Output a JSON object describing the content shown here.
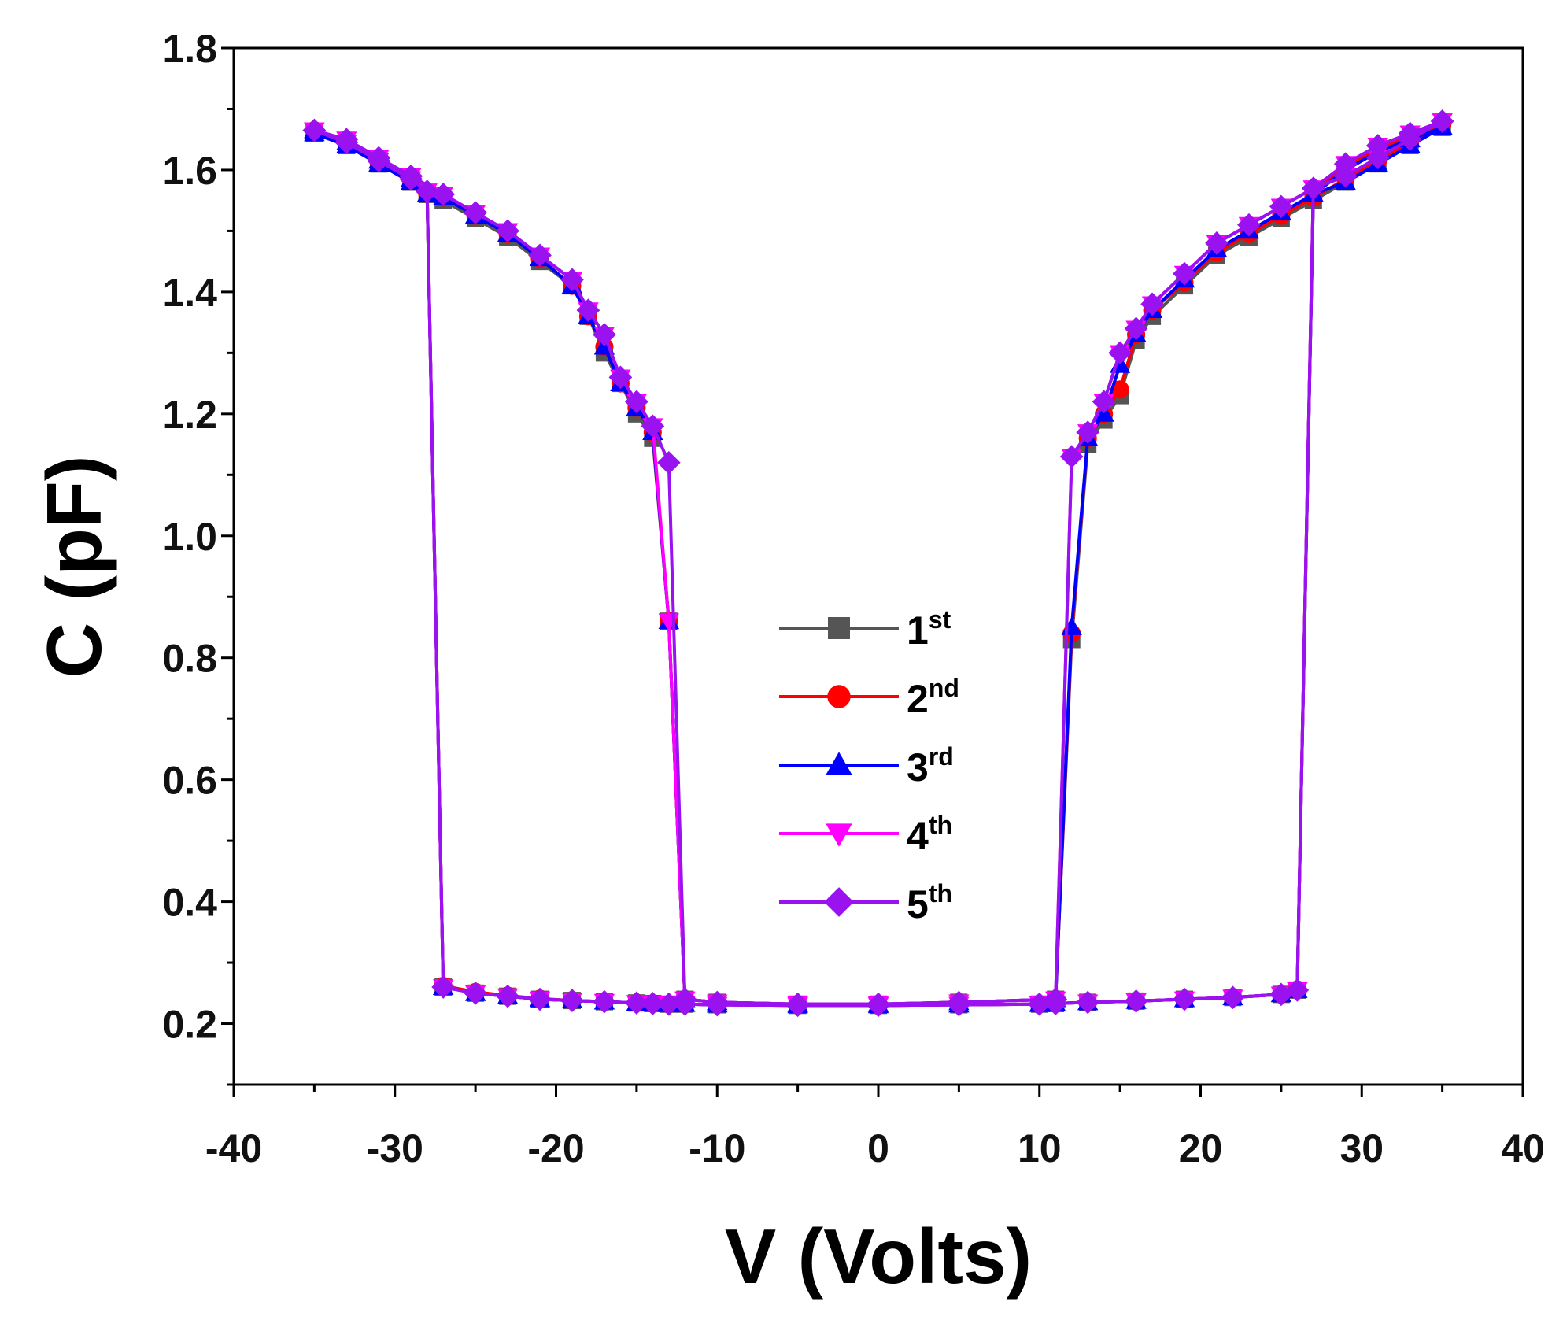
{
  "chart_data": {
    "type": "line",
    "xlabel": "V (Volts)",
    "ylabel": "C (pF)",
    "xlim": [
      -40,
      40
    ],
    "ylim": [
      0.1,
      1.8
    ],
    "xticks": [
      -40,
      -30,
      -20,
      -10,
      0,
      10,
      20,
      30,
      40
    ],
    "yticks": [
      0.2,
      0.4,
      0.6,
      0.8,
      1.0,
      1.2,
      1.4,
      1.6,
      1.8
    ],
    "xtick_labels": [
      "-40",
      "-30",
      "-20",
      "-10",
      "0",
      "10",
      "20",
      "30",
      "40"
    ],
    "ytick_labels": [
      "0.2",
      "0.4",
      "0.6",
      "0.8",
      "1.0",
      "1.2",
      "1.4",
      "1.6",
      "1.8"
    ],
    "legend_position": "center",
    "series": [
      {
        "name": "1st",
        "num": "1",
        "sup": "st",
        "color": "#555555",
        "marker": "square",
        "segments": [
          {
            "x": [
              -35,
              -33,
              -31,
              -29,
              -28,
              -27,
              -25,
              -23,
              -21,
              -19,
              -17,
              -15,
              -14,
              -13,
              -12,
              -10,
              -5,
              0,
              5,
              10,
              11,
              13,
              16,
              19,
              22,
              25,
              26,
              27,
              29,
              31,
              33,
              35
            ],
            "y": [
              1.66,
              1.64,
              1.61,
              1.58,
              1.56,
              0.26,
              0.25,
              0.245,
              0.24,
              0.238,
              0.236,
              0.234,
              0.233,
              0.232,
              0.232,
              0.231,
              0.23,
              0.23,
              0.231,
              0.232,
              0.233,
              0.235,
              0.237,
              0.24,
              0.243,
              0.248,
              0.255,
              1.56,
              1.6,
              1.63,
              1.65,
              1.67
            ]
          },
          {
            "x": [
              35,
              33,
              31,
              29,
              27,
              25,
              23,
              21,
              19,
              17,
              16,
              15,
              14,
              13,
              12,
              11,
              5,
              0,
              -5,
              -10,
              -12,
              -13,
              -14,
              -15,
              -16,
              -17,
              -18,
              -19,
              -21,
              -23,
              -25,
              -27,
              -29,
              -31,
              -33,
              -35
            ],
            "y": [
              1.67,
              1.64,
              1.61,
              1.58,
              1.55,
              1.52,
              1.49,
              1.46,
              1.41,
              1.36,
              1.32,
              1.23,
              1.19,
              1.15,
              0.83,
              0.24,
              0.235,
              0.232,
              0.232,
              0.235,
              0.24,
              0.86,
              1.16,
              1.2,
              1.25,
              1.3,
              1.36,
              1.41,
              1.45,
              1.49,
              1.52,
              1.55,
              1.58,
              1.61,
              1.64,
              1.66
            ]
          }
        ]
      },
      {
        "name": "2nd",
        "num": "2",
        "sup": "nd",
        "color": "#ff0000",
        "marker": "circle",
        "segments": [
          {
            "x": [
              -35,
              -33,
              -31,
              -29,
              -28,
              -27,
              -25,
              -23,
              -21,
              -19,
              -17,
              -15,
              -14,
              -13,
              -12,
              -10,
              -5,
              0,
              5,
              10,
              11,
              13,
              16,
              19,
              22,
              25,
              26,
              27,
              29,
              31,
              33,
              35
            ],
            "y": [
              1.665,
              1.645,
              1.612,
              1.582,
              1.562,
              0.262,
              0.252,
              0.246,
              0.241,
              0.238,
              0.236,
              0.234,
              0.233,
              0.232,
              0.232,
              0.231,
              0.23,
              0.23,
              0.231,
              0.232,
              0.233,
              0.235,
              0.237,
              0.24,
              0.243,
              0.248,
              0.256,
              1.565,
              1.605,
              1.635,
              1.655,
              1.675
            ]
          },
          {
            "x": [
              35,
              33,
              31,
              29,
              27,
              25,
              23,
              21,
              19,
              17,
              16,
              15,
              14,
              13,
              12,
              11,
              5,
              0,
              -5,
              -10,
              -12,
              -13,
              -14,
              -15,
              -16,
              -17,
              -18,
              -19,
              -21,
              -23,
              -25,
              -27,
              -29,
              -31,
              -33,
              -35
            ],
            "y": [
              1.675,
              1.645,
              1.615,
              1.585,
              1.555,
              1.525,
              1.495,
              1.465,
              1.415,
              1.37,
              1.33,
              1.24,
              1.2,
              1.16,
              0.84,
              0.24,
              0.235,
              0.232,
              0.232,
              0.235,
              0.24,
              0.86,
              1.17,
              1.21,
              1.25,
              1.31,
              1.36,
              1.41,
              1.455,
              1.495,
              1.525,
              1.555,
              1.585,
              1.615,
              1.645,
              1.665
            ]
          }
        ]
      },
      {
        "name": "3rd",
        "num": "3",
        "sup": "rd",
        "color": "#0000ff",
        "marker": "triangle-up",
        "segments": [
          {
            "x": [
              -35,
              -33,
              -31,
              -29,
              -28,
              -27,
              -25,
              -23,
              -21,
              -19,
              -17,
              -15,
              -14,
              -13,
              -12,
              -10,
              -5,
              0,
              5,
              10,
              11,
              13,
              16,
              19,
              22,
              25,
              26,
              27,
              29,
              31,
              33,
              35
            ],
            "y": [
              1.66,
              1.64,
              1.61,
              1.58,
              1.56,
              0.26,
              0.25,
              0.245,
              0.24,
              0.238,
              0.236,
              0.234,
              0.233,
              0.232,
              0.232,
              0.231,
              0.23,
              0.23,
              0.231,
              0.232,
              0.233,
              0.235,
              0.237,
              0.24,
              0.243,
              0.248,
              0.255,
              1.56,
              1.6,
              1.63,
              1.65,
              1.67
            ]
          },
          {
            "x": [
              35,
              33,
              31,
              29,
              27,
              25,
              23,
              21,
              19,
              17,
              16,
              15,
              14,
              13,
              12,
              11,
              5,
              0,
              -5,
              -10,
              -12,
              -13,
              -14,
              -15,
              -16,
              -17,
              -18,
              -19,
              -21,
              -23,
              -25,
              -27,
              -29,
              -31,
              -33,
              -35
            ],
            "y": [
              1.67,
              1.64,
              1.61,
              1.58,
              1.56,
              1.53,
              1.5,
              1.47,
              1.42,
              1.37,
              1.33,
              1.28,
              1.2,
              1.16,
              0.85,
              0.24,
              0.235,
              0.232,
              0.232,
              0.235,
              0.24,
              0.86,
              1.17,
              1.21,
              1.25,
              1.31,
              1.36,
              1.41,
              1.455,
              1.495,
              1.525,
              1.555,
              1.585,
              1.615,
              1.645,
              1.665
            ]
          }
        ]
      },
      {
        "name": "4th",
        "num": "4",
        "sup": "th",
        "color": "#ff00ff",
        "marker": "triangle-down",
        "segments": [
          {
            "x": [
              -35,
              -33,
              -31,
              -29,
              -28,
              -27,
              -25,
              -23,
              -21,
              -19,
              -17,
              -15,
              -14,
              -13,
              -12,
              -10,
              -5,
              0,
              5,
              10,
              11,
              13,
              16,
              19,
              22,
              25,
              26,
              27,
              29,
              31,
              33,
              35
            ],
            "y": [
              1.665,
              1.645,
              1.615,
              1.585,
              1.565,
              0.26,
              0.25,
              0.245,
              0.24,
              0.238,
              0.236,
              0.234,
              0.233,
              0.232,
              0.232,
              0.231,
              0.23,
              0.23,
              0.231,
              0.232,
              0.233,
              0.235,
              0.237,
              0.24,
              0.243,
              0.248,
              0.255,
              1.57,
              1.61,
              1.64,
              1.66,
              1.68
            ]
          },
          {
            "x": [
              35,
              33,
              31,
              29,
              27,
              25,
              23,
              21,
              19,
              17,
              16,
              15,
              14,
              13,
              12,
              11,
              5,
              0,
              -5,
              -10,
              -12,
              -13,
              -14,
              -15,
              -16,
              -17,
              -18,
              -19,
              -21,
              -23,
              -25,
              -27,
              -29,
              -31,
              -33,
              -35
            ],
            "y": [
              1.68,
              1.65,
              1.62,
              1.59,
              1.57,
              1.54,
              1.51,
              1.48,
              1.43,
              1.38,
              1.34,
              1.3,
              1.22,
              1.17,
              1.13,
              0.24,
              0.235,
              0.232,
              0.232,
              0.235,
              0.24,
              0.86,
              1.18,
              1.22,
              1.26,
              1.33,
              1.37,
              1.42,
              1.46,
              1.5,
              1.53,
              1.56,
              1.59,
              1.62,
              1.65,
              1.665
            ]
          }
        ]
      },
      {
        "name": "5th",
        "num": "5",
        "sup": "th",
        "color": "#9a12f0",
        "marker": "diamond",
        "segments": [
          {
            "x": [
              -35,
              -33,
              -31,
              -29,
              -28,
              -27,
              -25,
              -23,
              -21,
              -19,
              -17,
              -15,
              -14,
              -13,
              -12,
              -10,
              -5,
              0,
              5,
              10,
              11,
              13,
              16,
              19,
              22,
              25,
              26,
              27,
              29,
              31,
              33,
              35
            ],
            "y": [
              1.665,
              1.645,
              1.615,
              1.585,
              1.565,
              0.26,
              0.25,
              0.245,
              0.24,
              0.238,
              0.236,
              0.234,
              0.233,
              0.232,
              0.232,
              0.231,
              0.23,
              0.23,
              0.231,
              0.232,
              0.233,
              0.235,
              0.237,
              0.24,
              0.243,
              0.248,
              0.255,
              1.57,
              1.61,
              1.64,
              1.66,
              1.68
            ]
          },
          {
            "x": [
              35,
              33,
              31,
              29,
              27,
              25,
              23,
              21,
              19,
              17,
              16,
              15,
              14,
              13,
              12,
              11,
              5,
              0,
              -5,
              -10,
              -12,
              -13,
              -14,
              -15,
              -16,
              -17,
              -18,
              -19,
              -21,
              -23,
              -25,
              -27,
              -29,
              -31,
              -33,
              -35
            ],
            "y": [
              1.68,
              1.65,
              1.62,
              1.59,
              1.57,
              1.54,
              1.51,
              1.48,
              1.43,
              1.38,
              1.34,
              1.3,
              1.22,
              1.17,
              1.13,
              0.24,
              0.235,
              0.232,
              0.232,
              0.235,
              0.24,
              1.12,
              1.18,
              1.22,
              1.26,
              1.33,
              1.37,
              1.42,
              1.46,
              1.5,
              1.53,
              1.56,
              1.59,
              1.62,
              1.65,
              1.665
            ]
          }
        ]
      }
    ]
  }
}
